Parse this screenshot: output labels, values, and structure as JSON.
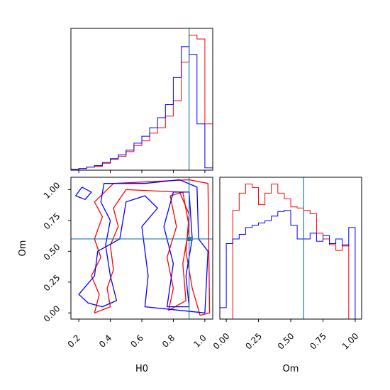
{
  "chart_data": {
    "type": "corner",
    "parameters": [
      "H0",
      "Om"
    ],
    "truths": {
      "H0": 0.9,
      "Om": 0.6
    },
    "colors": {
      "red_series": "#ff0000",
      "blue_series": "#0000ff",
      "truth": "#1f77b4"
    },
    "panels": [
      {
        "name": "H0-histogram",
        "type": "step-histogram",
        "x_param": "H0",
        "xlim": [
          0.15,
          1.05
        ],
        "x_ticks": [
          0.2,
          0.4,
          0.6,
          0.8,
          1.0
        ],
        "show_tick_labels": false,
        "series": [
          {
            "color": "red",
            "bin_edges": [
              0.15,
              0.2,
              0.25,
              0.3,
              0.35,
              0.4,
              0.45,
              0.5,
              0.55,
              0.6,
              0.65,
              0.7,
              0.75,
              0.8,
              0.85,
              0.9,
              0.95,
              1.0,
              1.05
            ],
            "counts": [
              1,
              2,
              4,
              5,
              9,
              14,
              18,
              24,
              32,
              38,
              48,
              55,
              70,
              90,
              140,
              175,
              170,
              60
            ]
          },
          {
            "color": "blue",
            "bin_edges": [
              0.15,
              0.2,
              0.25,
              0.3,
              0.35,
              0.4,
              0.45,
              0.5,
              0.55,
              0.6,
              0.65,
              0.7,
              0.75,
              0.8,
              0.85,
              0.9,
              0.95,
              1.0,
              1.05
            ],
            "counts": [
              1,
              2,
              4,
              6,
              10,
              15,
              20,
              26,
              35,
              44,
              55,
              68,
              85,
              120,
              160,
              150,
              60,
              3
            ]
          }
        ]
      },
      {
        "name": "H0-Om-contours",
        "type": "2d-contour",
        "x_param": "H0",
        "y_param": "Om",
        "xlim": [
          0.15,
          1.05
        ],
        "ylim": [
          -0.05,
          1.1
        ],
        "x_ticks": [
          "0.2",
          "0.4",
          "0.6",
          "0.8",
          "1.0"
        ],
        "y_ticks": [
          "0.00",
          "0.25",
          "0.50",
          "0.75",
          "1.00"
        ],
        "xlabel": "H0",
        "ylabel": "Om",
        "series": [
          {
            "color": "red",
            "contours": [
              [
                [
                  0.3,
                  0.0
                ],
                [
                  0.33,
                  0.15
                ],
                [
                  0.28,
                  0.3
                ],
                [
                  0.34,
                  0.45
                ],
                [
                  0.3,
                  0.6
                ],
                [
                  0.35,
                  0.78
                ],
                [
                  0.3,
                  0.9
                ],
                [
                  0.42,
                  1.05
                ],
                [
                  0.9,
                  1.08
                ],
                [
                  1.02,
                  1.05
                ],
                [
                  1.03,
                  0.0
                ],
                [
                  0.97,
                  -0.02
                ],
                [
                  0.92,
                  0.2
                ],
                [
                  0.88,
                  0.5
                ],
                [
                  0.9,
                  0.8
                ],
                [
                  0.84,
                  0.98
                ],
                [
                  0.5,
                  1.0
                ],
                [
                  0.42,
                  0.85
                ],
                [
                  0.45,
                  0.7
                ],
                [
                  0.4,
                  0.55
                ],
                [
                  0.42,
                  0.35
                ],
                [
                  0.38,
                  0.2
                ],
                [
                  0.4,
                  0.05
                ],
                [
                  0.3,
                  0.0
                ]
              ],
              [
                [
                  0.77,
                  0.02
                ],
                [
                  0.8,
                  0.2
                ],
                [
                  0.76,
                  0.45
                ],
                [
                  0.82,
                  0.7
                ],
                [
                  0.78,
                  0.95
                ],
                [
                  0.86,
                  0.98
                ],
                [
                  0.9,
                  0.7
                ],
                [
                  0.86,
                  0.4
                ],
                [
                  0.88,
                  0.1
                ],
                [
                  0.77,
                  0.02
                ]
              ]
            ]
          },
          {
            "color": "blue",
            "contours": [
              [
                [
                  0.2,
                  0.15
                ],
                [
                  0.26,
                  0.08
                ],
                [
                  0.35,
                  0.05
                ],
                [
                  0.44,
                  0.1
                ],
                [
                  0.4,
                  0.3
                ],
                [
                  0.37,
                  0.55
                ],
                [
                  0.4,
                  0.75
                ],
                [
                  0.34,
                  0.9
                ],
                [
                  0.36,
                  1.05
                ],
                [
                  0.62,
                  1.05
                ],
                [
                  0.84,
                  1.08
                ],
                [
                  0.95,
                  1.02
                ],
                [
                  0.96,
                  0.6
                ],
                [
                  1.02,
                  0.5
                ],
                [
                  1.0,
                  0.0
                ],
                [
                  0.62,
                  0.05
                ],
                [
                  0.64,
                  0.3
                ],
                [
                  0.6,
                  0.7
                ],
                [
                  0.7,
                  0.85
                ],
                [
                  0.62,
                  0.95
                ],
                [
                  0.5,
                  0.9
                ],
                [
                  0.46,
                  0.6
                ],
                [
                  0.32,
                  0.5
                ],
                [
                  0.3,
                  0.3
                ],
                [
                  0.2,
                  0.15
                ]
              ],
              [
                [
                  0.76,
                  0.05
                ],
                [
                  0.8,
                  0.4
                ],
                [
                  0.74,
                  0.7
                ],
                [
                  0.8,
                  0.98
                ],
                [
                  0.9,
                  0.98
                ],
                [
                  0.92,
                  0.6
                ],
                [
                  0.88,
                  0.3
                ],
                [
                  0.9,
                  0.05
                ],
                [
                  0.76,
                  0.05
                ]
              ],
              [
                [
                  0.22,
                  1.02
                ],
                [
                  0.18,
                  0.95
                ],
                [
                  0.24,
                  0.92
                ],
                [
                  0.28,
                  0.98
                ],
                [
                  0.22,
                  1.02
                ]
              ]
            ]
          }
        ]
      },
      {
        "name": "Om-histogram",
        "type": "step-histogram",
        "x_param": "Om",
        "xlim": [
          -0.05,
          1.05
        ],
        "x_ticks": [
          "0.00",
          "0.25",
          "0.50",
          "0.75",
          "1.00"
        ],
        "xlabel": "Om",
        "series": [
          {
            "color": "red",
            "bin_edges": [
              -0.05,
              0.0,
              0.05,
              0.1,
              0.15,
              0.2,
              0.25,
              0.3,
              0.35,
              0.4,
              0.45,
              0.5,
              0.55,
              0.6,
              0.65,
              0.7,
              0.75,
              0.8,
              0.85,
              0.9,
              0.95,
              1.0,
              1.05
            ],
            "counts": [
              0,
              0,
              95,
              110,
              118,
              115,
              100,
              110,
              118,
              110,
              105,
              98,
              97,
              95,
              92,
              75,
              70,
              65,
              60,
              65,
              0,
              0
            ]
          },
          {
            "color": "blue",
            "bin_edges": [
              -0.05,
              0.0,
              0.05,
              0.1,
              0.15,
              0.2,
              0.25,
              0.3,
              0.35,
              0.4,
              0.45,
              0.5,
              0.55,
              0.6,
              0.65,
              0.7,
              0.75,
              0.8,
              0.85,
              0.9,
              0.95,
              1.0,
              1.05
            ],
            "counts": [
              10,
              66,
              70,
              74,
              80,
              82,
              84,
              86,
              90,
              94,
              95,
              82,
              70,
              70,
              75,
              68,
              73,
              66,
              70,
              64,
              80,
              0
            ]
          }
        ]
      }
    ]
  }
}
